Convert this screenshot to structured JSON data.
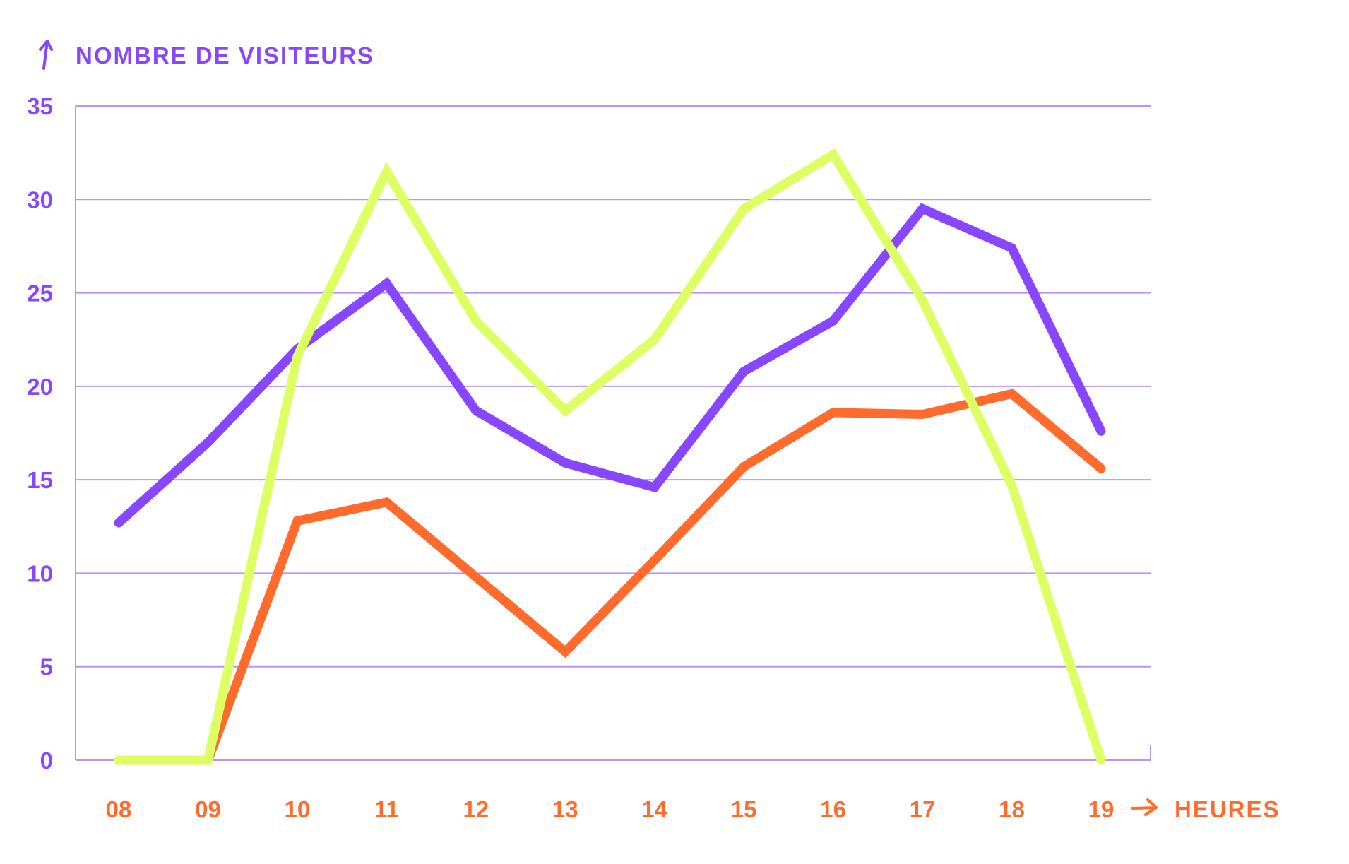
{
  "chart_data": {
    "type": "line",
    "title": "",
    "ylabel": "NOMBRE DE VISITEURS",
    "xlabel": "HEURES",
    "ylim": [
      0,
      35
    ],
    "yticks": [
      0,
      5,
      10,
      15,
      20,
      25,
      30,
      35
    ],
    "categories": [
      "08",
      "09",
      "10",
      "11",
      "12",
      "13",
      "14",
      "15",
      "16",
      "17",
      "18",
      "19"
    ],
    "grid": true,
    "series": [
      {
        "name": "purple",
        "color": "#8847ff",
        "values": [
          12.7,
          17.0,
          22.0,
          25.5,
          18.7,
          15.9,
          14.6,
          20.8,
          23.5,
          29.5,
          27.4,
          17.6
        ]
      },
      {
        "name": "orange",
        "color": "#ff6b2c",
        "values": [
          0,
          0,
          12.8,
          13.8,
          9.8,
          5.8,
          10.7,
          15.7,
          18.6,
          18.5,
          19.6,
          15.6
        ]
      },
      {
        "name": "green",
        "color": "#ddff63",
        "values": [
          0,
          0,
          21.6,
          31.5,
          23.5,
          18.7,
          22.5,
          29.5,
          32.4,
          24.6,
          14.7,
          0
        ]
      }
    ],
    "colors": {
      "axis": "#8847ff",
      "grid": "#b794ff",
      "xaxis_text": "#ff6b2c"
    }
  }
}
